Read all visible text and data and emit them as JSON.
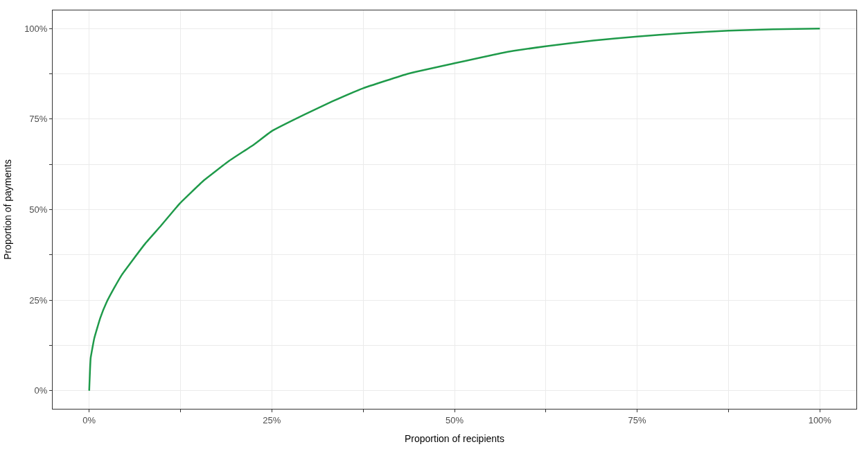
{
  "chart_data": {
    "type": "line",
    "xlabel": "Proportion of recipients",
    "ylabel": "Proportion of payments",
    "series": [
      {
        "color": "#1f9a4a",
        "x": [
          0,
          0.2,
          0.7,
          1.5,
          2.4,
          3.4,
          4.5,
          6.0,
          7.7,
          9.8,
          12.4,
          15.6,
          19.1,
          22.5,
          25,
          29.4,
          33.3,
          37.5,
          43.6,
          50,
          56.6,
          62.5,
          69,
          75,
          81.1,
          87.5,
          93.6,
          100
        ],
        "values": [
          0,
          9.0,
          14.5,
          20,
          24.5,
          28.3,
          32.1,
          36.2,
          40.7,
          45.5,
          51.7,
          57.9,
          63.4,
          67.9,
          71.7,
          76.2,
          79.9,
          83.5,
          87.5,
          90.4,
          93.3,
          95.1,
          96.7,
          97.8,
          98.7,
          99.4,
          99.8,
          100
        ]
      }
    ],
    "xlim": [
      -5,
      105
    ],
    "ylim": [
      -5,
      105
    ],
    "xticks": [
      {
        "value": 0,
        "label": "0%"
      },
      {
        "value": 12.5,
        "label": null
      },
      {
        "value": 25,
        "label": "25%"
      },
      {
        "value": 37.5,
        "label": null
      },
      {
        "value": 50,
        "label": "50%"
      },
      {
        "value": 62.5,
        "label": null
      },
      {
        "value": 75,
        "label": "75%"
      },
      {
        "value": 87.5,
        "label": null
      },
      {
        "value": 100,
        "label": "100%"
      }
    ],
    "yticks": [
      {
        "value": 0,
        "label": "0%"
      },
      {
        "value": 12.5,
        "label": null
      },
      {
        "value": 25,
        "label": "25%"
      },
      {
        "value": 37.5,
        "label": null
      },
      {
        "value": 50,
        "label": "50%"
      },
      {
        "value": 62.5,
        "label": null
      },
      {
        "value": 75,
        "label": "75%"
      },
      {
        "value": 87.5,
        "label": null
      },
      {
        "value": 100,
        "label": "100%"
      }
    ],
    "grid": true,
    "marker": "none",
    "line_style": "solid"
  }
}
